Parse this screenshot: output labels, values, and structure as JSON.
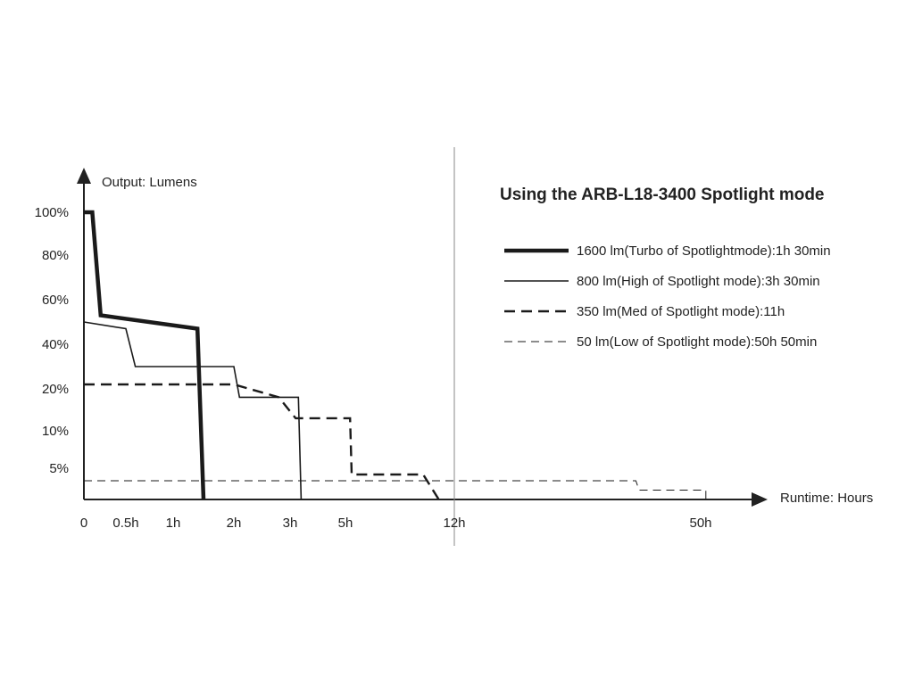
{
  "chart_data": {
    "type": "line",
    "title": "Using the ARB-L18-3400  Spotlight mode",
    "xlabel": "Runtime: Hours",
    "ylabel": "Output: Lumens",
    "x_ticks": [
      "0",
      "0.5h",
      "1h",
      "2h",
      "3h",
      "5h",
      "12h",
      "50h"
    ],
    "y_ticks": [
      "5%",
      "10%",
      "20%",
      "40%",
      "60%",
      "80%",
      "100%"
    ],
    "x_scale": "nonlinear (category-spaced tick labels)",
    "y_scale": "nonlinear (category-spaced tick labels)",
    "reference_line_x": "12h",
    "legend_position": "top-right",
    "grid": false,
    "series": [
      {
        "name": "1600 lm(Turbo of Spotlightmode):1h 30min",
        "style": "thick-solid",
        "points": [
          [
            "0",
            "100%"
          ],
          [
            "0.1h",
            "100%"
          ],
          [
            "0.2h",
            "53%"
          ],
          [
            "1.4h",
            "47%"
          ],
          [
            "1.5h",
            "0"
          ]
        ]
      },
      {
        "name": "800 lm(High of Spotlight mode):3h 30min",
        "style": "thin-solid",
        "points": [
          [
            "0",
            "50%"
          ],
          [
            "0.5h",
            "47%"
          ],
          [
            "0.6h",
            "30%"
          ],
          [
            "2h",
            "30%"
          ],
          [
            "2.1h",
            "18%"
          ],
          [
            "3.3h",
            "18%"
          ],
          [
            "3.4h",
            "0"
          ]
        ]
      },
      {
        "name": "350 lm(Med of Spotlight mode):11h",
        "style": "thick-dashed",
        "points": [
          [
            "0",
            "22%"
          ],
          [
            "2h",
            "22%"
          ],
          [
            "2.8h",
            "18%"
          ],
          [
            "3.2h",
            "13%"
          ],
          [
            "5.3h",
            "13%"
          ],
          [
            "5.4h",
            "4%"
          ],
          [
            "10h",
            "4%"
          ],
          [
            "11h",
            "0"
          ]
        ]
      },
      {
        "name": "50 lm(Low of Spotlight mode):50h 50min",
        "style": "thin-dashed",
        "points": [
          [
            "0",
            "3%"
          ],
          [
            "40h",
            "3%"
          ],
          [
            "40.5h",
            "1.5%"
          ],
          [
            "50.8h",
            "1.5%"
          ],
          [
            "50.8h",
            "0"
          ]
        ]
      }
    ]
  }
}
